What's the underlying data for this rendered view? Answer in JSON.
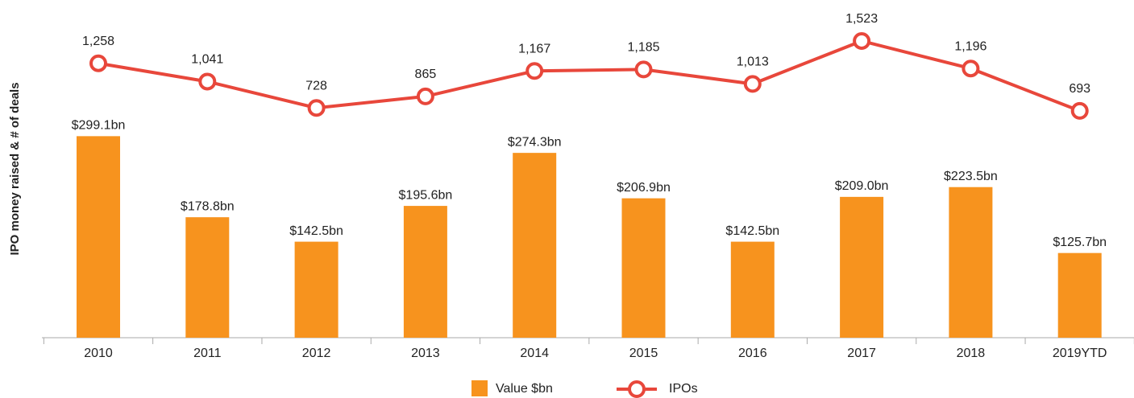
{
  "chart_data": {
    "type": "bar",
    "y_label": "IPO money raised & # of deals",
    "categories": [
      "2010",
      "2011",
      "2012",
      "2013",
      "2014",
      "2015",
      "2016",
      "2017",
      "2018",
      "2019YTD"
    ],
    "ylim": [
      0,
      500
    ],
    "y2lim": [
      -2000,
      2000
    ],
    "series": [
      {
        "name": "Value $bn",
        "type": "bar",
        "color": "#f7931e",
        "values": [
          299.1,
          178.8,
          142.5,
          195.6,
          274.3,
          206.9,
          142.5,
          209.0,
          223.5,
          125.7
        ],
        "value_labels": [
          "$299.1bn",
          "$178.8bn",
          "$142.5bn",
          "$195.6bn",
          "$274.3bn",
          "$206.9bn",
          "$142.5bn",
          "$209.0bn",
          "$223.5bn",
          "$125.7bn"
        ]
      },
      {
        "name": "IPOs",
        "type": "line",
        "axis": "y2",
        "color": "#e8473b",
        "values": [
          1258,
          1041,
          728,
          865,
          1167,
          1185,
          1013,
          1523,
          1196,
          693
        ],
        "value_labels": [
          "1,258",
          "1,041",
          "728",
          "865",
          "1,167",
          "1,185",
          "1,013",
          "1,523",
          "1,196",
          "693"
        ]
      }
    ]
  }
}
